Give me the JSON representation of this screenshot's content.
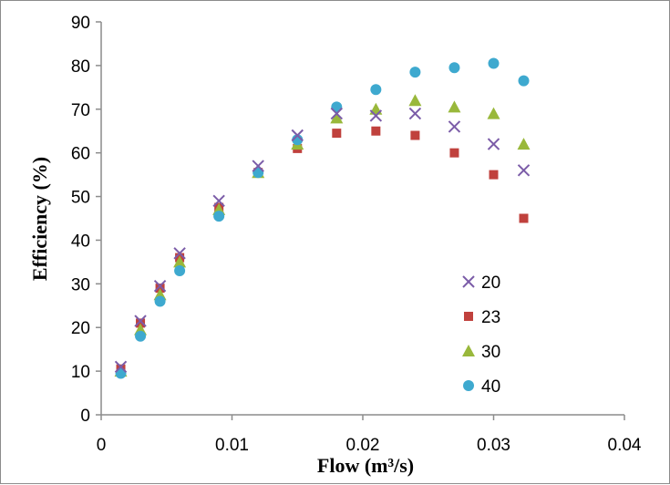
{
  "chart_data": {
    "type": "scatter",
    "title": "",
    "xlabel": "Flow (m³/s)",
    "ylabel": "Efficiency (%)",
    "xlim": [
      0,
      0.04
    ],
    "ylim": [
      0,
      90
    ],
    "xticks": [
      0,
      0.01,
      0.02,
      0.03,
      0.04
    ],
    "xtick_labels": [
      "0",
      "0.01",
      "0.02",
      "0.03",
      "0.04"
    ],
    "yticks": [
      0,
      10,
      20,
      30,
      40,
      50,
      60,
      70,
      80,
      90
    ],
    "ytick_labels": [
      "0",
      "10",
      "20",
      "30",
      "40",
      "50",
      "60",
      "70",
      "80",
      "90"
    ],
    "grid": false,
    "legend_position": "bottom-right",
    "series": [
      {
        "name": "20",
        "marker": "x",
        "color": "#7b5ca8",
        "x": [
          0.0015,
          0.003,
          0.0045,
          0.006,
          0.009,
          0.012,
          0.015,
          0.018,
          0.021,
          0.024,
          0.027,
          0.03,
          0.0323
        ],
        "y": [
          11,
          21.5,
          29.5,
          37,
          49,
          57,
          64,
          69,
          68.5,
          69,
          66,
          62,
          56
        ]
      },
      {
        "name": "23",
        "marker": "square",
        "color": "#c0413d",
        "x": [
          0.0015,
          0.003,
          0.0045,
          0.006,
          0.009,
          0.012,
          0.015,
          0.018,
          0.021,
          0.024,
          0.027,
          0.03,
          0.0323
        ],
        "y": [
          10.5,
          21,
          29,
          36,
          47.5,
          55.5,
          61,
          64.5,
          65,
          64,
          60,
          55,
          45
        ]
      },
      {
        "name": "30",
        "marker": "triangle",
        "color": "#99b83b",
        "x": [
          0.0015,
          0.003,
          0.0045,
          0.006,
          0.009,
          0.012,
          0.015,
          0.018,
          0.021,
          0.024,
          0.027,
          0.03,
          0.0323
        ],
        "y": [
          10,
          19.5,
          27.5,
          35,
          47,
          55.5,
          62,
          68,
          70,
          72,
          70.5,
          69,
          62
        ]
      },
      {
        "name": "40",
        "marker": "circle",
        "color": "#3ea9cf",
        "x": [
          0.0015,
          0.003,
          0.0045,
          0.006,
          0.009,
          0.012,
          0.015,
          0.018,
          0.021,
          0.024,
          0.027,
          0.03,
          0.0323
        ],
        "y": [
          9.5,
          18,
          26,
          33,
          45.5,
          55.5,
          63,
          70.5,
          74.5,
          78.5,
          79.5,
          80.5,
          76.5
        ]
      }
    ]
  }
}
